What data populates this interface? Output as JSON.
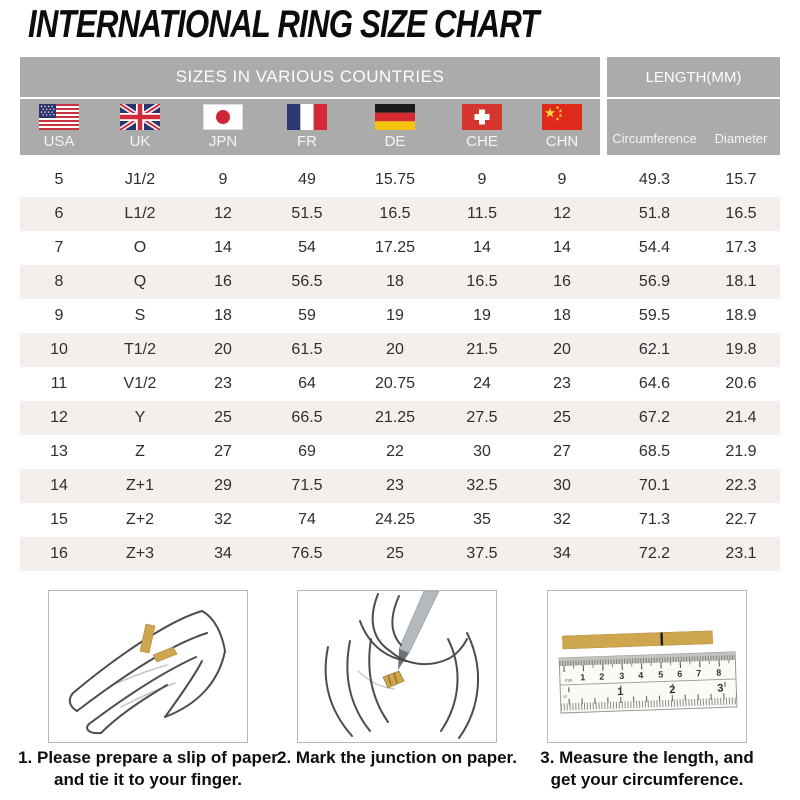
{
  "title": "INTERNATIONAL RING SIZE CHART",
  "colors": {
    "header_gray": "#ababab",
    "row_shade": "#f4efec",
    "paper_gold": "#cda64e",
    "text_dark": "#2e2e2e"
  },
  "table": {
    "header_left": "SIZES IN VARIOUS COUNTRIES",
    "header_right": "LENGTH(MM)",
    "countries": [
      {
        "code": "USA"
      },
      {
        "code": "UK"
      },
      {
        "code": "JPN"
      },
      {
        "code": "FR"
      },
      {
        "code": "DE"
      },
      {
        "code": "CHE"
      },
      {
        "code": "CHN"
      }
    ],
    "length_columns": [
      "Circumference",
      "Diameter"
    ]
  },
  "chart_data": {
    "type": "table",
    "title": "INTERNATIONAL RING SIZE CHART",
    "columns": [
      "USA",
      "UK",
      "JPN",
      "FR",
      "DE",
      "CHE",
      "CHN",
      "Circumference",
      "Diameter"
    ],
    "rows": [
      [
        "5",
        "J1/2",
        "9",
        "49",
        "15.75",
        "9",
        "9",
        "49.3",
        "15.7"
      ],
      [
        "6",
        "L1/2",
        "12",
        "51.5",
        "16.5",
        "11.5",
        "12",
        "51.8",
        "16.5"
      ],
      [
        "7",
        "O",
        "14",
        "54",
        "17.25",
        "14",
        "14",
        "54.4",
        "17.3"
      ],
      [
        "8",
        "Q",
        "16",
        "56.5",
        "18",
        "16.5",
        "16",
        "56.9",
        "18.1"
      ],
      [
        "9",
        "S",
        "18",
        "59",
        "19",
        "19",
        "18",
        "59.5",
        "18.9"
      ],
      [
        "10",
        "T1/2",
        "20",
        "61.5",
        "20",
        "21.5",
        "20",
        "62.1",
        "19.8"
      ],
      [
        "11",
        "V1/2",
        "23",
        "64",
        "20.75",
        "24",
        "23",
        "64.6",
        "20.6"
      ],
      [
        "12",
        "Y",
        "25",
        "66.5",
        "21.25",
        "27.5",
        "25",
        "67.2",
        "21.4"
      ],
      [
        "13",
        "Z",
        "27",
        "69",
        "22",
        "30",
        "27",
        "68.5",
        "21.9"
      ],
      [
        "14",
        "Z+1",
        "29",
        "71.5",
        "23",
        "32.5",
        "30",
        "70.1",
        "22.3"
      ],
      [
        "15",
        "Z+2",
        "32",
        "74",
        "24.25",
        "35",
        "32",
        "71.3",
        "22.7"
      ],
      [
        "16",
        "Z+3",
        "34",
        "76.5",
        "25",
        "37.5",
        "34",
        "72.2",
        "23.1"
      ]
    ]
  },
  "instructions": [
    {
      "illustration": "hand-with-paper-slip",
      "lines": [
        "1. Please prepare a slip of paper",
        "and tie it to your finger."
      ]
    },
    {
      "illustration": "mark-junction-with-pen",
      "lines": [
        "2. Mark the junction on paper."
      ]
    },
    {
      "illustration": "paper-strip-and-ruler",
      "lines": [
        "3. Measure the length, and",
        "get your circumference."
      ]
    }
  ],
  "ruler": {
    "cm": [
      "1",
      "2",
      "3",
      "4",
      "5",
      "6",
      "7",
      "8"
    ],
    "inch": [
      "1",
      "2",
      "3"
    ],
    "unit_top": "mm",
    "unit_bottom": "in"
  }
}
